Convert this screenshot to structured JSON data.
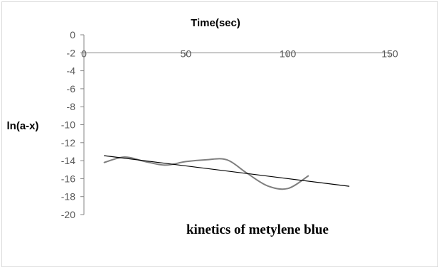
{
  "chart_data": {
    "type": "line",
    "title": "",
    "xlabel": "Time(sec)",
    "ylabel": "ln(a-x)",
    "caption": "kinetics of metylene blue",
    "xlim": [
      0,
      150
    ],
    "ylim": [
      -20,
      0
    ],
    "x_ticks": [
      "0",
      "50",
      "100",
      "150"
    ],
    "y_ticks": [
      "0",
      "-2",
      "-4",
      "-6",
      "-8",
      "-10",
      "-12",
      "-14",
      "-16",
      "-18",
      "-20"
    ],
    "x_axis_position": "top",
    "grid": false,
    "legend": "none",
    "series": [
      {
        "color": "#7f7f7f",
        "x": [
          10,
          20,
          30,
          40,
          50,
          60,
          70,
          80,
          90,
          100,
          110
        ],
        "y": [
          -14.2,
          -13.6,
          -14.1,
          -14.5,
          -14.1,
          -13.9,
          -13.9,
          -15.4,
          -16.8,
          -17.1,
          -15.7
        ]
      },
      {
        "color": "#000000",
        "x": [
          10,
          130
        ],
        "y": [
          -13.45,
          -16.85
        ]
      }
    ]
  }
}
